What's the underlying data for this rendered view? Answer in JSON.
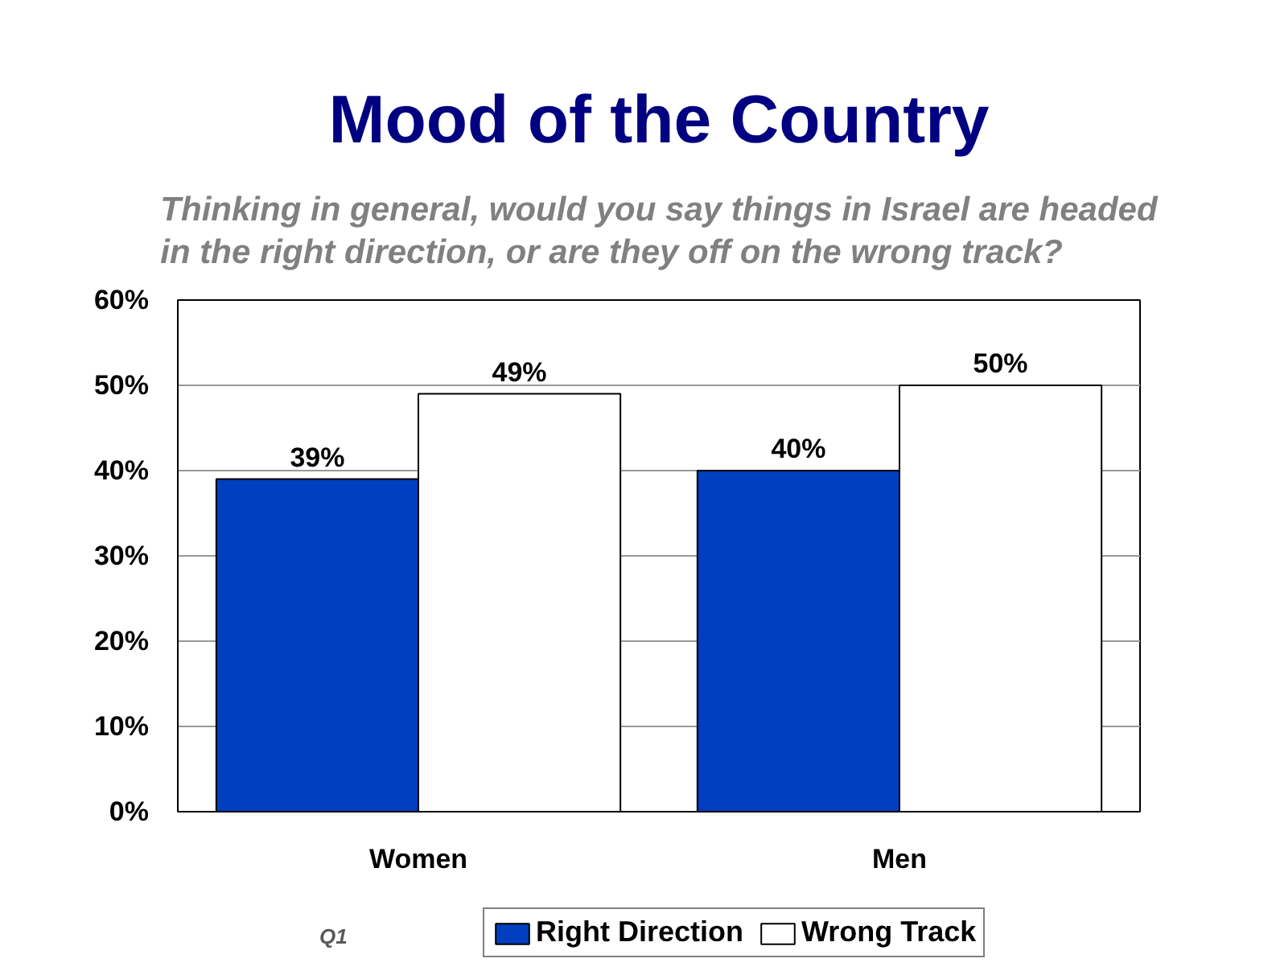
{
  "chart_data": {
    "type": "bar",
    "title": "Mood of the Country",
    "subtitle": "Thinking in general, would you say things in Israel are headed in the right direction, or are they off on the wrong track?",
    "categories": [
      "Women",
      "Men"
    ],
    "series": [
      {
        "name": "Right Direction",
        "color": "#0040c0",
        "values": [
          39,
          40
        ],
        "value_labels": [
          "39%",
          "40%"
        ]
      },
      {
        "name": "Wrong Track",
        "color": "#ffffff",
        "values": [
          49,
          50
        ],
        "value_labels": [
          "49%",
          "50%"
        ]
      }
    ],
    "ylim": [
      0,
      60
    ],
    "yticks": [
      {
        "value": 0,
        "label": "0%"
      },
      {
        "value": 10,
        "label": "10%"
      },
      {
        "value": 20,
        "label": "20%"
      },
      {
        "value": 30,
        "label": "30%"
      },
      {
        "value": 40,
        "label": "40%"
      },
      {
        "value": 50,
        "label": "50%"
      },
      {
        "value": 60,
        "label": "60%"
      }
    ],
    "grid": "y",
    "legend": "bottom",
    "annotations": [
      "Q1"
    ]
  }
}
